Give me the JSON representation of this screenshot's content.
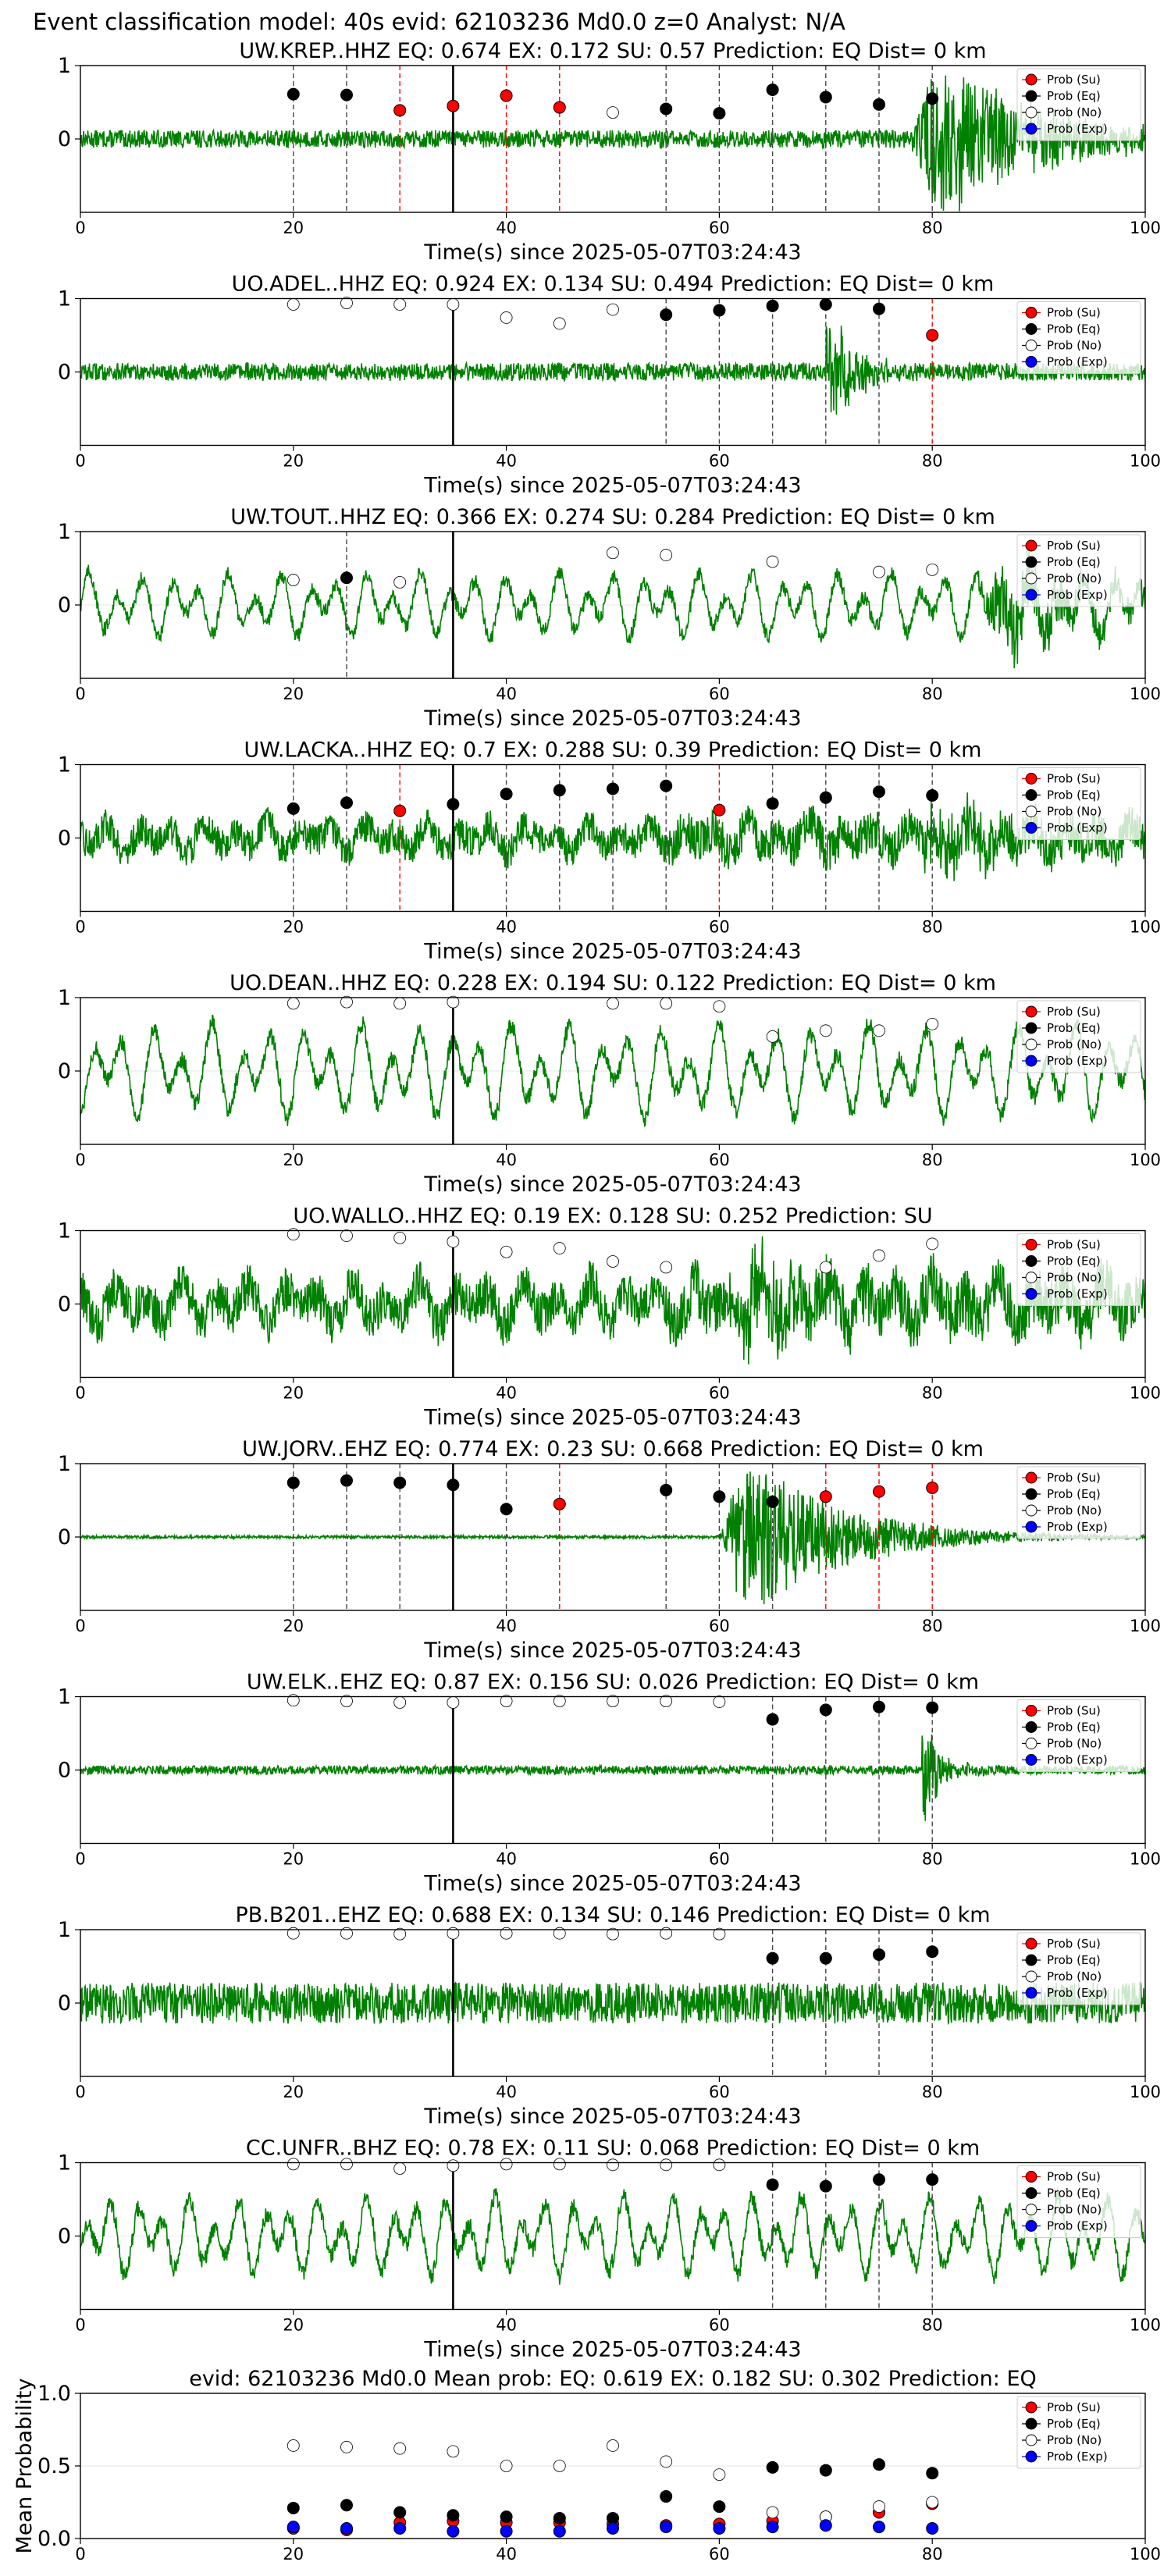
{
  "figure": {
    "suptitle": "Event classification model: 40s evid: 62103236 Md0.0 z=0 Analyst: N/A",
    "xlabel": "Time(s) since 2025-05-07T03:24:43",
    "legend": [
      "Prob (Su)",
      "Prob (Eq)",
      "Prob (No)",
      "Prob (Exp)"
    ],
    "colors": {
      "trace": "#008000",
      "su": "#ff0000",
      "eq": "#000000",
      "no": "#ffffff",
      "exp": "#0000ff",
      "su_line": "#ff0000",
      "eq_line": "#444444",
      "origin_line": "#000000"
    }
  },
  "chart_data": [
    {
      "type": "line",
      "title": "UW.KREP..HHZ   EQ: 0.674   EX: 0.172   SU: 0.57    Prediction: EQ    Dist= 0 km",
      "xlim": [
        0,
        100
      ],
      "ylim": [
        -1,
        1
      ],
      "xticks": [
        0,
        20,
        40,
        60,
        80,
        100
      ],
      "yticks": [
        0,
        1
      ],
      "origin_time": 35,
      "trace": {
        "style": "onset",
        "noise": 0.12,
        "onset": 78,
        "amp": 0.95
      },
      "points": [
        {
          "t": 20,
          "p": 0.61,
          "cls": "eq"
        },
        {
          "t": 25,
          "p": 0.6,
          "cls": "eq"
        },
        {
          "t": 30,
          "p": 0.39,
          "cls": "su"
        },
        {
          "t": 35,
          "p": 0.45,
          "cls": "su"
        },
        {
          "t": 40,
          "p": 0.59,
          "cls": "su"
        },
        {
          "t": 45,
          "p": 0.43,
          "cls": "su"
        },
        {
          "t": 50,
          "p": 0.36,
          "cls": "no"
        },
        {
          "t": 55,
          "p": 0.41,
          "cls": "eq"
        },
        {
          "t": 60,
          "p": 0.35,
          "cls": "eq"
        },
        {
          "t": 65,
          "p": 0.67,
          "cls": "eq"
        },
        {
          "t": 70,
          "p": 0.57,
          "cls": "eq"
        },
        {
          "t": 75,
          "p": 0.47,
          "cls": "eq"
        },
        {
          "t": 80,
          "p": 0.55,
          "cls": "eq"
        }
      ]
    },
    {
      "type": "line",
      "title": "UO.ADEL..HHZ   EQ: 0.924   EX: 0.134   SU: 0.494   Prediction: EQ    Dist= 0 km",
      "xlim": [
        0,
        100
      ],
      "ylim": [
        -1,
        1
      ],
      "xticks": [
        0,
        20,
        40,
        60,
        80,
        100
      ],
      "yticks": [
        0,
        1
      ],
      "origin_time": 35,
      "trace": {
        "style": "burst",
        "noise": 0.12,
        "onset": 70,
        "amp": 0.95
      },
      "points": [
        {
          "t": 20,
          "p": 0.92,
          "cls": "no"
        },
        {
          "t": 25,
          "p": 0.94,
          "cls": "no"
        },
        {
          "t": 30,
          "p": 0.92,
          "cls": "no"
        },
        {
          "t": 35,
          "p": 0.92,
          "cls": "no"
        },
        {
          "t": 40,
          "p": 0.74,
          "cls": "no"
        },
        {
          "t": 45,
          "p": 0.66,
          "cls": "no"
        },
        {
          "t": 50,
          "p": 0.85,
          "cls": "no"
        },
        {
          "t": 55,
          "p": 0.78,
          "cls": "eq"
        },
        {
          "t": 60,
          "p": 0.84,
          "cls": "eq"
        },
        {
          "t": 65,
          "p": 0.9,
          "cls": "eq"
        },
        {
          "t": 70,
          "p": 0.92,
          "cls": "eq"
        },
        {
          "t": 75,
          "p": 0.86,
          "cls": "eq"
        },
        {
          "t": 80,
          "p": 0.5,
          "cls": "su"
        }
      ]
    },
    {
      "type": "line",
      "title": "UW.TOUT..HHZ   EQ: 0.366   EX: 0.274   SU: 0.284   Prediction: EQ    Dist= 0 km",
      "xlim": [
        0,
        100
      ],
      "ylim": [
        -1,
        1
      ],
      "xticks": [
        0,
        20,
        40,
        60,
        80,
        100
      ],
      "yticks": [
        0,
        1
      ],
      "origin_time": 35,
      "trace": {
        "style": "wave",
        "noise": 0.1,
        "amp": 0.45,
        "period": 2.6,
        "onset": 84
      },
      "points": [
        {
          "t": 20,
          "p": 0.34,
          "cls": "no"
        },
        {
          "t": 25,
          "p": 0.37,
          "cls": "eq"
        },
        {
          "t": 30,
          "p": 0.31,
          "cls": "no"
        },
        {
          "t": 50,
          "p": 0.71,
          "cls": "no"
        },
        {
          "t": 55,
          "p": 0.68,
          "cls": "no"
        },
        {
          "t": 65,
          "p": 0.59,
          "cls": "no"
        },
        {
          "t": 75,
          "p": 0.45,
          "cls": "no"
        },
        {
          "t": 80,
          "p": 0.48,
          "cls": "no"
        }
      ]
    },
    {
      "type": "line",
      "title": "UW.LACKA..HHZ   EQ: 0.7   EX: 0.288   SU: 0.39    Prediction: EQ    Dist= 0 km",
      "xlim": [
        0,
        100
      ],
      "ylim": [
        -1,
        1
      ],
      "xticks": [
        0,
        20,
        40,
        60,
        80,
        100
      ],
      "yticks": [
        0,
        1
      ],
      "origin_time": 35,
      "trace": {
        "style": "mixed",
        "noise": 0.22,
        "amp": 0.2,
        "period": 3.0,
        "onset": 78
      },
      "points": [
        {
          "t": 20,
          "p": 0.4,
          "cls": "eq"
        },
        {
          "t": 25,
          "p": 0.48,
          "cls": "eq"
        },
        {
          "t": 30,
          "p": 0.37,
          "cls": "su"
        },
        {
          "t": 35,
          "p": 0.46,
          "cls": "eq"
        },
        {
          "t": 40,
          "p": 0.6,
          "cls": "eq"
        },
        {
          "t": 45,
          "p": 0.65,
          "cls": "eq"
        },
        {
          "t": 50,
          "p": 0.67,
          "cls": "eq"
        },
        {
          "t": 55,
          "p": 0.71,
          "cls": "eq"
        },
        {
          "t": 60,
          "p": 0.38,
          "cls": "su"
        },
        {
          "t": 65,
          "p": 0.47,
          "cls": "eq"
        },
        {
          "t": 70,
          "p": 0.55,
          "cls": "eq"
        },
        {
          "t": 75,
          "p": 0.63,
          "cls": "eq"
        },
        {
          "t": 80,
          "p": 0.58,
          "cls": "eq"
        }
      ]
    },
    {
      "type": "line",
      "title": "UO.DEAN..HHZ   EQ: 0.228   EX: 0.194   SU: 0.122   Prediction: EQ    Dist= 0 km",
      "xlim": [
        0,
        100
      ],
      "ylim": [
        -1,
        1
      ],
      "xticks": [
        0,
        20,
        40,
        60,
        80,
        100
      ],
      "yticks": [
        0,
        1
      ],
      "origin_time": 35,
      "trace": {
        "style": "wave",
        "noise": 0.12,
        "amp": 0.65,
        "period": 2.8,
        "onset": 200
      },
      "points": [
        {
          "t": 20,
          "p": 0.92,
          "cls": "no"
        },
        {
          "t": 25,
          "p": 0.94,
          "cls": "no"
        },
        {
          "t": 30,
          "p": 0.92,
          "cls": "no"
        },
        {
          "t": 35,
          "p": 0.94,
          "cls": "no"
        },
        {
          "t": 50,
          "p": 0.92,
          "cls": "no"
        },
        {
          "t": 55,
          "p": 0.92,
          "cls": "no"
        },
        {
          "t": 60,
          "p": 0.88,
          "cls": "no"
        },
        {
          "t": 65,
          "p": 0.47,
          "cls": "no"
        },
        {
          "t": 70,
          "p": 0.55,
          "cls": "no"
        },
        {
          "t": 75,
          "p": 0.55,
          "cls": "no"
        },
        {
          "t": 80,
          "p": 0.64,
          "cls": "no"
        }
      ]
    },
    {
      "type": "line",
      "title": "UO.WALLO..HHZ   EQ: 0.19   EX: 0.128   SU: 0.252   Prediction: SU",
      "xlim": [
        0,
        100
      ],
      "ylim": [
        -1,
        1
      ],
      "xticks": [
        0,
        20,
        40,
        60,
        80,
        100
      ],
      "yticks": [
        0,
        1
      ],
      "origin_time": 35,
      "trace": {
        "style": "mixed",
        "noise": 0.3,
        "amp": 0.3,
        "period": 3.2,
        "onset": 60
      },
      "points": [
        {
          "t": 20,
          "p": 0.95,
          "cls": "no"
        },
        {
          "t": 25,
          "p": 0.93,
          "cls": "no"
        },
        {
          "t": 30,
          "p": 0.9,
          "cls": "no"
        },
        {
          "t": 35,
          "p": 0.85,
          "cls": "no"
        },
        {
          "t": 40,
          "p": 0.71,
          "cls": "no"
        },
        {
          "t": 45,
          "p": 0.76,
          "cls": "no"
        },
        {
          "t": 50,
          "p": 0.58,
          "cls": "no"
        },
        {
          "t": 55,
          "p": 0.5,
          "cls": "no"
        },
        {
          "t": 70,
          "p": 0.5,
          "cls": "no"
        },
        {
          "t": 75,
          "p": 0.66,
          "cls": "no"
        },
        {
          "t": 80,
          "p": 0.82,
          "cls": "no"
        }
      ]
    },
    {
      "type": "line",
      "title": "UW.JORV..EHZ   EQ: 0.774   EX: 0.23   SU: 0.668   Prediction: EQ    Dist= 0 km",
      "xlim": [
        0,
        100
      ],
      "ylim": [
        -1,
        1
      ],
      "xticks": [
        0,
        20,
        40,
        60,
        80,
        100
      ],
      "yticks": [
        0,
        1
      ],
      "origin_time": 35,
      "trace": {
        "style": "onset",
        "noise": 0.02,
        "onset": 60,
        "amp": 0.95
      },
      "points": [
        {
          "t": 20,
          "p": 0.74,
          "cls": "eq"
        },
        {
          "t": 25,
          "p": 0.77,
          "cls": "eq"
        },
        {
          "t": 30,
          "p": 0.74,
          "cls": "eq"
        },
        {
          "t": 35,
          "p": 0.71,
          "cls": "eq"
        },
        {
          "t": 40,
          "p": 0.38,
          "cls": "eq"
        },
        {
          "t": 45,
          "p": 0.45,
          "cls": "su"
        },
        {
          "t": 55,
          "p": 0.64,
          "cls": "eq"
        },
        {
          "t": 60,
          "p": 0.55,
          "cls": "eq"
        },
        {
          "t": 65,
          "p": 0.48,
          "cls": "eq"
        },
        {
          "t": 70,
          "p": 0.55,
          "cls": "su"
        },
        {
          "t": 75,
          "p": 0.62,
          "cls": "su"
        },
        {
          "t": 80,
          "p": 0.67,
          "cls": "su"
        }
      ]
    },
    {
      "type": "line",
      "title": "UW.ELK..EHZ   EQ: 0.87   EX: 0.156   SU: 0.026   Prediction: EQ    Dist= 0 km",
      "xlim": [
        0,
        100
      ],
      "ylim": [
        -1,
        1
      ],
      "xticks": [
        0,
        20,
        40,
        60,
        80,
        100
      ],
      "yticks": [
        0,
        1
      ],
      "origin_time": 35,
      "trace": {
        "style": "spike",
        "noise": 0.06,
        "onset": 79,
        "amp": 0.9
      },
      "points": [
        {
          "t": 20,
          "p": 0.95,
          "cls": "no"
        },
        {
          "t": 25,
          "p": 0.94,
          "cls": "no"
        },
        {
          "t": 30,
          "p": 0.92,
          "cls": "no"
        },
        {
          "t": 35,
          "p": 0.92,
          "cls": "no"
        },
        {
          "t": 40,
          "p": 0.94,
          "cls": "no"
        },
        {
          "t": 45,
          "p": 0.94,
          "cls": "no"
        },
        {
          "t": 50,
          "p": 0.94,
          "cls": "no"
        },
        {
          "t": 55,
          "p": 0.94,
          "cls": "no"
        },
        {
          "t": 60,
          "p": 0.93,
          "cls": "no"
        },
        {
          "t": 65,
          "p": 0.69,
          "cls": "eq"
        },
        {
          "t": 70,
          "p": 0.82,
          "cls": "eq"
        },
        {
          "t": 75,
          "p": 0.86,
          "cls": "eq"
        },
        {
          "t": 80,
          "p": 0.85,
          "cls": "eq"
        }
      ]
    },
    {
      "type": "line",
      "title": "PB.B201..EHZ   EQ: 0.688   EX: 0.134   SU: 0.146   Prediction: EQ    Dist= 0 km",
      "xlim": [
        0,
        100
      ],
      "ylim": [
        -1,
        1
      ],
      "xticks": [
        0,
        20,
        40,
        60,
        80,
        100
      ],
      "yticks": [
        0,
        1
      ],
      "origin_time": 35,
      "trace": {
        "style": "noise",
        "noise": 0.28,
        "onset": 200,
        "amp": 0.3
      },
      "points": [
        {
          "t": 20,
          "p": 0.95,
          "cls": "no"
        },
        {
          "t": 25,
          "p": 0.95,
          "cls": "no"
        },
        {
          "t": 30,
          "p": 0.94,
          "cls": "no"
        },
        {
          "t": 35,
          "p": 0.95,
          "cls": "no"
        },
        {
          "t": 40,
          "p": 0.95,
          "cls": "no"
        },
        {
          "t": 45,
          "p": 0.95,
          "cls": "no"
        },
        {
          "t": 50,
          "p": 0.94,
          "cls": "no"
        },
        {
          "t": 55,
          "p": 0.95,
          "cls": "no"
        },
        {
          "t": 60,
          "p": 0.94,
          "cls": "no"
        },
        {
          "t": 65,
          "p": 0.61,
          "cls": "eq"
        },
        {
          "t": 70,
          "p": 0.61,
          "cls": "eq"
        },
        {
          "t": 75,
          "p": 0.66,
          "cls": "eq"
        },
        {
          "t": 80,
          "p": 0.7,
          "cls": "eq"
        }
      ]
    },
    {
      "type": "line",
      "title": "CC.UNFR..BHZ   EQ: 0.78   EX: 0.11   SU: 0.068   Prediction: EQ    Dist= 0 km",
      "xlim": [
        0,
        100
      ],
      "ylim": [
        -1,
        1
      ],
      "xticks": [
        0,
        20,
        40,
        60,
        80,
        100
      ],
      "yticks": [
        0,
        1
      ],
      "origin_time": 35,
      "trace": {
        "style": "wave",
        "noise": 0.12,
        "amp": 0.55,
        "period": 2.4,
        "onset": 200
      },
      "points": [
        {
          "t": 20,
          "p": 0.98,
          "cls": "no"
        },
        {
          "t": 25,
          "p": 0.98,
          "cls": "no"
        },
        {
          "t": 30,
          "p": 0.92,
          "cls": "no"
        },
        {
          "t": 35,
          "p": 0.96,
          "cls": "no"
        },
        {
          "t": 40,
          "p": 0.98,
          "cls": "no"
        },
        {
          "t": 45,
          "p": 0.98,
          "cls": "no"
        },
        {
          "t": 50,
          "p": 0.97,
          "cls": "no"
        },
        {
          "t": 55,
          "p": 0.97,
          "cls": "no"
        },
        {
          "t": 60,
          "p": 0.97,
          "cls": "no"
        },
        {
          "t": 65,
          "p": 0.7,
          "cls": "eq"
        },
        {
          "t": 70,
          "p": 0.68,
          "cls": "eq"
        },
        {
          "t": 75,
          "p": 0.77,
          "cls": "eq"
        },
        {
          "t": 80,
          "p": 0.77,
          "cls": "eq"
        }
      ]
    },
    {
      "type": "scatter",
      "title": "evid: 62103236  Md0.0   Mean prob:   EQ: 0.619  EX: 0.182  SU: 0.302   Prediction: EQ",
      "ylabel": "Mean Probability",
      "xlim": [
        0,
        100
      ],
      "ylim": [
        0,
        1
      ],
      "xticks": [
        0,
        20,
        40,
        60,
        80,
        100
      ],
      "yticks": [
        0.0,
        0.5,
        1.0
      ],
      "x": [
        20,
        25,
        30,
        35,
        40,
        45,
        50,
        55,
        60,
        65,
        70,
        75,
        80
      ],
      "series": [
        {
          "name": "Prob (Su)",
          "cls": "su",
          "values": [
            0.07,
            0.06,
            0.11,
            0.12,
            0.11,
            0.11,
            0.1,
            0.09,
            0.1,
            0.12,
            0.15,
            0.18,
            0.24
          ]
        },
        {
          "name": "Prob (Eq)",
          "cls": "eq",
          "values": [
            0.21,
            0.23,
            0.18,
            0.16,
            0.15,
            0.14,
            0.14,
            0.29,
            0.22,
            0.49,
            0.47,
            0.51,
            0.45
          ]
        },
        {
          "name": "Prob (No)",
          "cls": "no",
          "values": [
            0.64,
            0.63,
            0.62,
            0.6,
            0.5,
            0.5,
            0.64,
            0.53,
            0.44,
            0.18,
            0.15,
            0.22,
            0.25
          ]
        },
        {
          "name": "Prob (Exp)",
          "cls": "exp",
          "values": [
            0.08,
            0.07,
            0.07,
            0.05,
            0.05,
            0.05,
            0.07,
            0.08,
            0.07,
            0.08,
            0.09,
            0.08,
            0.07
          ]
        }
      ]
    }
  ]
}
